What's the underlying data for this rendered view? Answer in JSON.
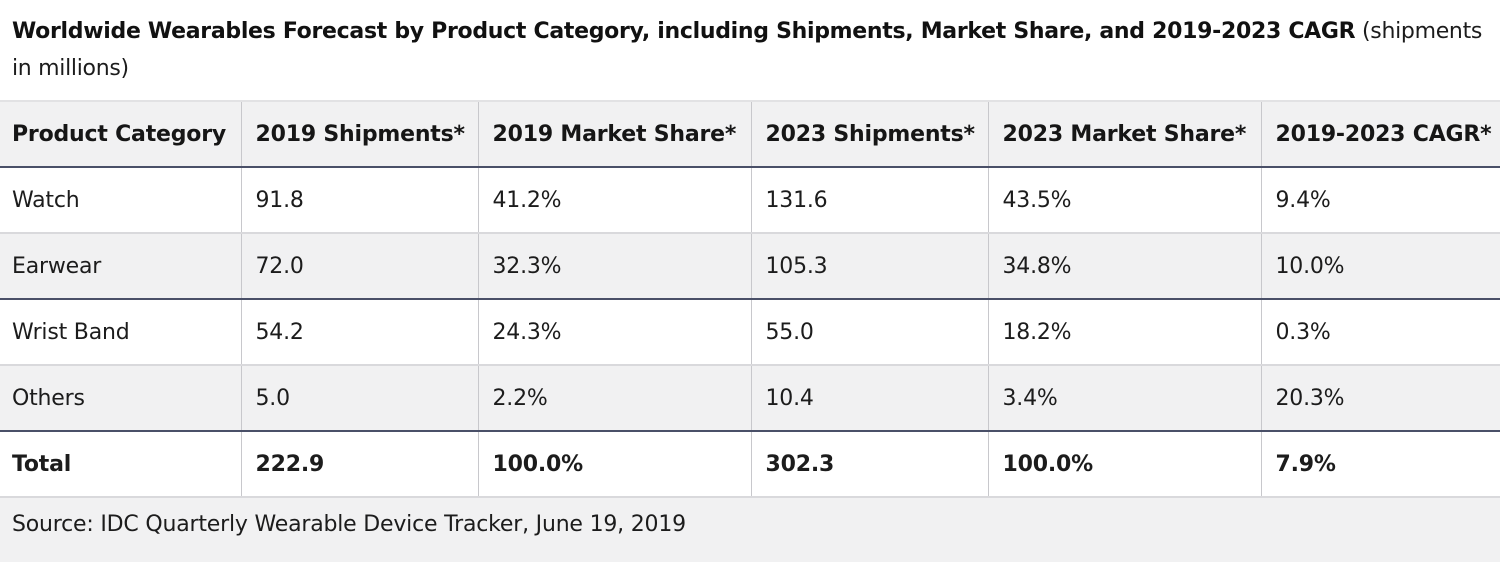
{
  "caption": {
    "title_bold": "Worldwide Wearables Forecast by Product Category, including Shipments, Market Share, and 2019-2023 CAGR",
    "title_suffix": " (shipments in millions)"
  },
  "table": {
    "headers": [
      "Product Category",
      "2019 Shipments*",
      "2019 Market Share*",
      "2023 Shipments*",
      "2023 Market Share*",
      "2019-2023 CAGR*"
    ],
    "rows": [
      [
        "Watch",
        "91.8",
        "41.2%",
        "131.6",
        "43.5%",
        "9.4%"
      ],
      [
        "Earwear",
        "72.0",
        "32.3%",
        "105.3",
        "34.8%",
        "10.0%"
      ],
      [
        "Wrist Band",
        "54.2",
        "24.3%",
        "55.0",
        "18.2%",
        "0.3%"
      ],
      [
        "Others",
        "5.0",
        "2.2%",
        "10.4",
        "3.4%",
        "20.3%"
      ]
    ],
    "total": [
      "Total",
      "222.9",
      "100.0%",
      "302.3",
      "100.0%",
      "7.9%"
    ]
  },
  "source": "Source: IDC Quarterly Wearable Device Tracker, June 19, 2019",
  "colors": {
    "header_bg": "#f1f1f2",
    "stripe_bg": "#f1f1f2",
    "group_border": "#4a5068",
    "cell_border": "#c8c8cc"
  }
}
